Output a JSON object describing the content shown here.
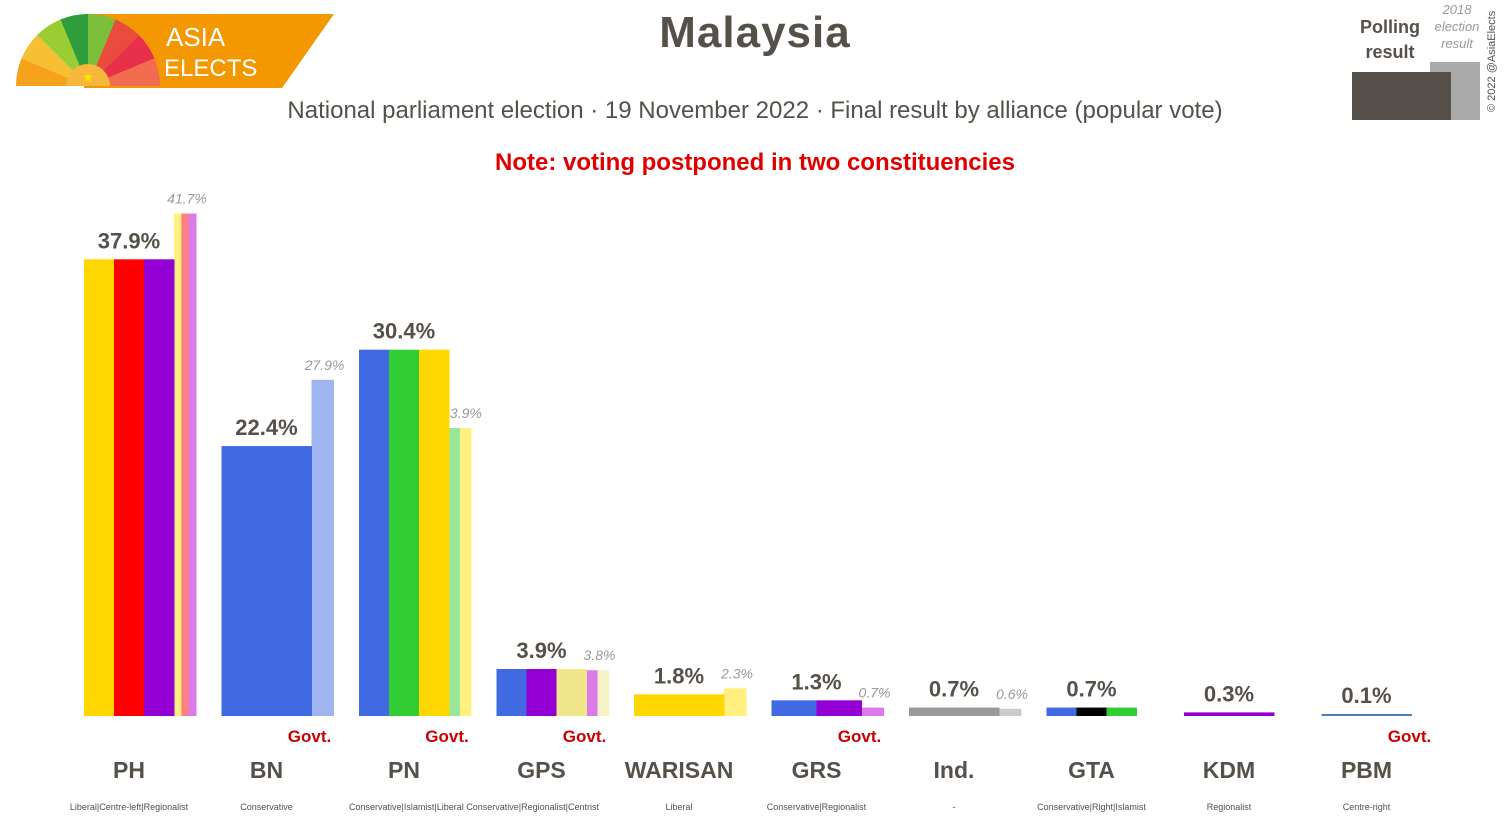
{
  "brand": {
    "line1": "ASIA",
    "line2": "ELECTS"
  },
  "header": {
    "title": "Malaysia",
    "subtitle": "National parliament election · 19 November 2022 · Final result by alliance (popular vote)",
    "note": "Note: voting postponed in two constituencies"
  },
  "legend": {
    "polling_line1": "Polling",
    "polling_line2": "result",
    "prev_line1": "2018",
    "prev_line2": "election",
    "prev_line3": "result"
  },
  "copyright": "© 2022 @AsiaElects",
  "colors": {
    "text": "#555049",
    "note": "#e00000",
    "govt": "#cc0000",
    "previous_label": "#999999",
    "legend_current": "#555049",
    "legend_previous": "#aaaaaa"
  },
  "chart_data": {
    "type": "bar",
    "ylim": [
      0,
      45
    ],
    "govt_label": "Govt.",
    "categories": [
      {
        "name": "PH",
        "ideology": "Liberal|Centre-left|Regionalist",
        "value": 37.9,
        "value_label": "37.9%",
        "previous": 41.7,
        "previous_label": "41.7%",
        "govt": false,
        "colors": [
          "#ffd700",
          "#ff0000",
          "#9400d3"
        ],
        "prev_colors": [
          "#fff080",
          "#ff8080",
          "#da7be9"
        ]
      },
      {
        "name": "BN",
        "ideology": "Conservative",
        "value": 22.4,
        "value_label": "22.4%",
        "previous": 27.9,
        "previous_label": "27.9%",
        "govt": true,
        "colors": [
          "#4169e1"
        ],
        "prev_colors": [
          "#a0b4ef"
        ]
      },
      {
        "name": "PN",
        "ideology": "Conservative|Islamist|Liberal Conservative|Regionalist|Centrist",
        "value": 30.4,
        "value_label": "30.4%",
        "previous": 23.9,
        "previous_label": "23.9%",
        "govt": true,
        "colors": [
          "#4169e1",
          "#32cd32",
          "#ffd700"
        ],
        "prev_colors": [
          "#98e698",
          "#fff080"
        ]
      },
      {
        "name": "GPS",
        "ideology": "",
        "value": 3.9,
        "value_label": "3.9%",
        "previous": 3.8,
        "previous_label": "3.8%",
        "govt": true,
        "colors": [
          "#4169e1",
          "#9400d3",
          "#f0e68c"
        ],
        "prev_colors": [
          "#da7be9",
          "#f7f2c5"
        ]
      },
      {
        "name": "WARISAN",
        "ideology": "Liberal",
        "value": 1.8,
        "value_label": "1.8%",
        "previous": 2.3,
        "previous_label": "2.3%",
        "govt": false,
        "colors": [
          "#ffd700"
        ],
        "prev_colors": [
          "#fff080"
        ]
      },
      {
        "name": "GRS",
        "ideology": "Conservative|Regionalist",
        "value": 1.3,
        "value_label": "1.3%",
        "previous": 0.7,
        "previous_label": "0.7%",
        "govt": true,
        "colors": [
          "#4169e1",
          "#9400d3"
        ],
        "prev_colors": [
          "#da7be9"
        ]
      },
      {
        "name": "Ind.",
        "ideology": "-",
        "value": 0.7,
        "value_label": "0.7%",
        "previous": 0.6,
        "previous_label": "0.6%",
        "govt": false,
        "colors": [
          "#999999"
        ],
        "prev_colors": [
          "#cccccc"
        ]
      },
      {
        "name": "GTA",
        "ideology": "Conservative|Right|Islamist",
        "value": 0.7,
        "value_label": "0.7%",
        "previous": null,
        "previous_label": "",
        "govt": false,
        "colors": [
          "#4169e1",
          "#000000",
          "#32cd32"
        ],
        "prev_colors": []
      },
      {
        "name": "KDM",
        "ideology": "Regionalist",
        "value": 0.3,
        "value_label": "0.3%",
        "previous": null,
        "previous_label": "",
        "govt": false,
        "colors": [
          "#9400d3"
        ],
        "prev_colors": []
      },
      {
        "name": "PBM",
        "ideology": "Centre-right",
        "value": 0.1,
        "value_label": "0.1%",
        "previous": null,
        "previous_label": "",
        "govt": true,
        "colors": [
          "#4682b4"
        ],
        "prev_colors": []
      }
    ]
  }
}
